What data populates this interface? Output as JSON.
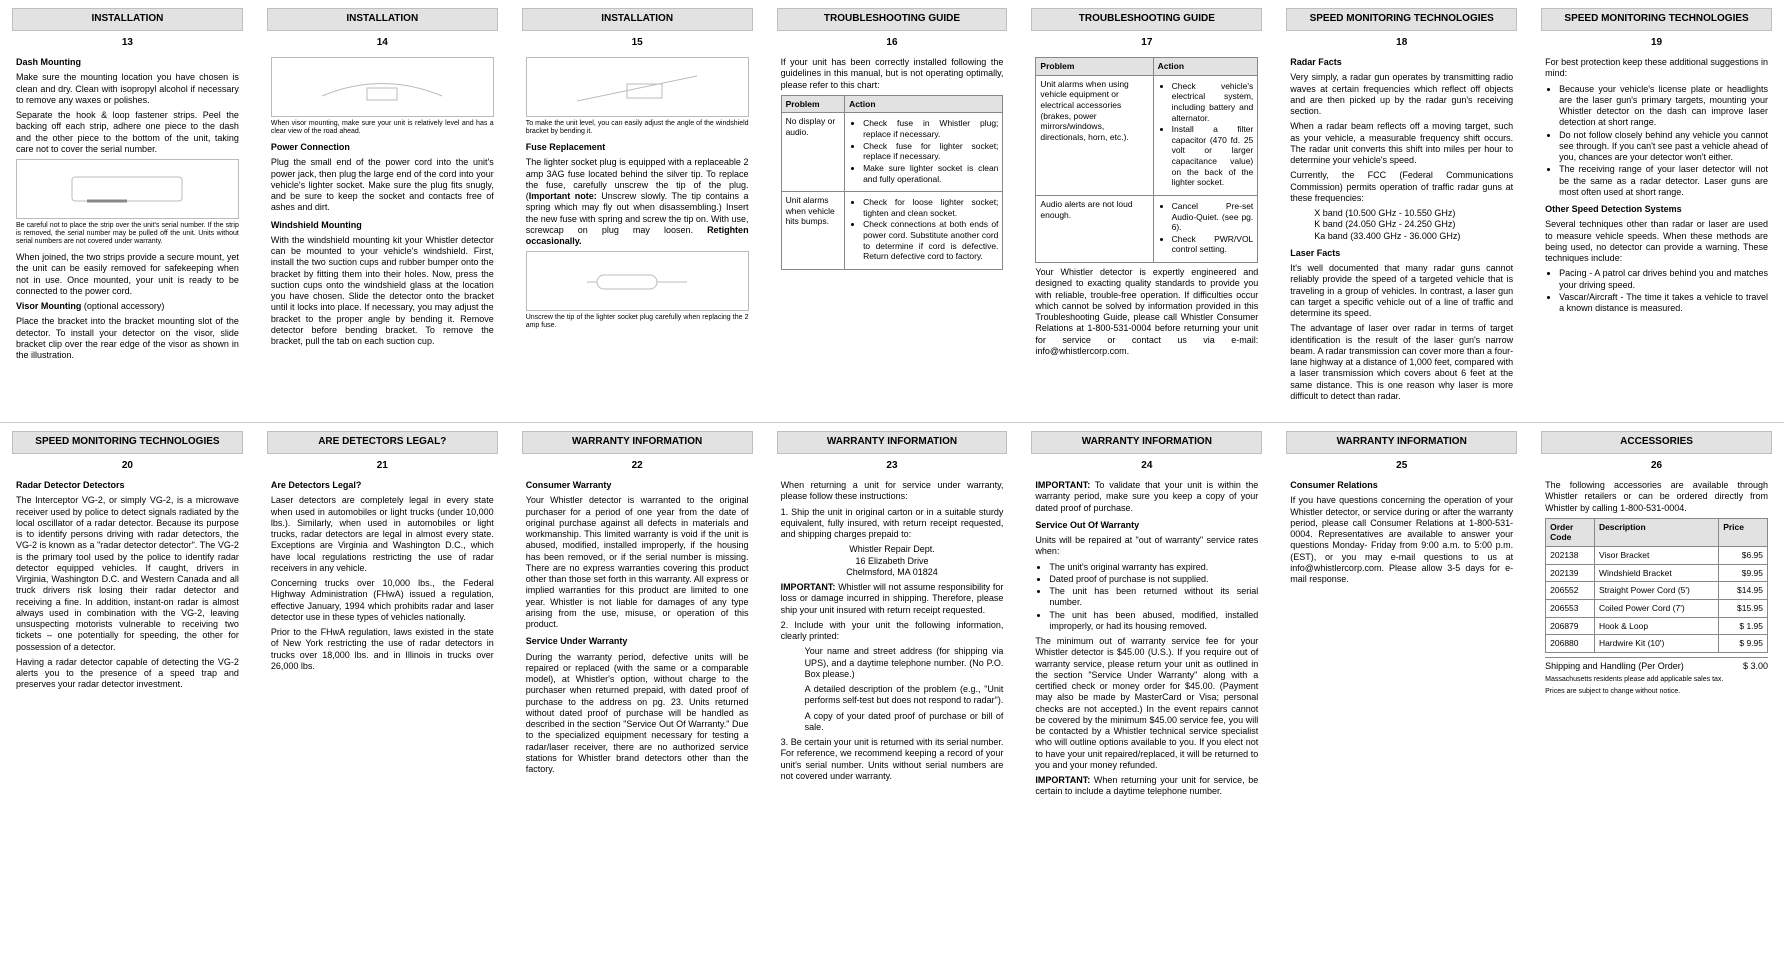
{
  "colors": {
    "header_bg": "#e2e2e2",
    "border": "#bfbfbf"
  },
  "pages": [
    {
      "header": "INSTALLATION",
      "num": "13",
      "h1": "Dash Mounting",
      "p1": "Make sure the mounting location you have chosen is clean and dry. Clean with isopropyl alcohol if necessary to remove any waxes or polishes.",
      "p2": "Separate the hook & loop fastener strips. Peel the backing off each strip, adhere one piece to the dash and the other piece to the bottom of the unit, taking care not to cover the serial number.",
      "cap1": "Be careful not to place the strip over the unit's serial number. If the strip is removed, the serial number may be pulled off the unit. Units without serial numbers are not covered under warranty.",
      "p3": "When joined, the two strips provide a secure mount, yet the unit can be easily removed for safekeeping when not in use. Once mounted, your unit is ready to be connected to the power cord.",
      "h2": "Visor Mounting",
      "h2_suffix": " (optional accessory)",
      "p4": "Place the bracket into the bracket mounting slot of the detector. To install your detector on the visor, slide bracket clip over the rear edge of the visor as shown in the illustration."
    },
    {
      "header": "INSTALLATION",
      "num": "14",
      "cap1": "When visor mounting, make sure your unit is relatively level and has a clear view of the road ahead.",
      "h1": "Power Connection",
      "p1": "Plug the small end of the power cord into the unit's power jack, then plug the large end of the cord into your vehicle's lighter socket. Make sure the plug fits snugly, and be sure to keep the socket and contacts free of ashes and dirt.",
      "h2": "Windshield Mounting",
      "p2": "With the windshield mounting kit your Whistler detector can be mounted to your vehicle's windshield. First, install the two suction cups and rubber bumper onto the bracket by fitting them into their holes. Now, press the suction cups onto the windshield glass at the location you have chosen. Slide the detector onto the bracket until it locks into place. If necessary, you may adjust the bracket to the proper angle by bending it. Remove detector before bending bracket. To remove the bracket, pull the tab on each suction cup."
    },
    {
      "header": "INSTALLATION",
      "num": "15",
      "cap1": "To make the unit level, you can easily adjust the angle of the windshield bracket by bending it.",
      "h1": "Fuse Replacement",
      "p1_a": "The lighter socket plug is equipped with a replaceable 2 amp 3AG fuse located behind the silver tip. To replace the fuse, carefully unscrew the tip of the plug. (",
      "p1_b": "Important note:",
      "p1_c": " Unscrew slowly. The tip contains a spring which may fly out when disassembling.) Insert the new fuse with spring and screw the tip on. With use, screwcap on plug may loosen. ",
      "p1_d": "Retighten occasionally.",
      "cap2": "Unscrew the tip of the lighter socket plug carefully when replacing the 2 amp fuse."
    },
    {
      "header": "TROUBLESHOOTING GUIDE",
      "num": "16",
      "intro": "If your unit has been correctly installed following the guidelines in this manual, but is not operating optimally, please refer to this chart:",
      "th1": "Problem",
      "th2": "Action",
      "r1c1": "No display or audio.",
      "r1c2": [
        "Check fuse in Whistler plug; replace if necessary.",
        "Check fuse for lighter socket; replace if necessary.",
        "Make sure lighter socket is clean and fully operational."
      ],
      "r2c1": "Unit alarms when vehicle hits bumps.",
      "r2c2": [
        "Check for loose lighter socket; tighten and clean socket.",
        "Check connections at both ends of power cord. Substitute another cord to determine if cord is defective. Return defective cord to factory."
      ]
    },
    {
      "header": "TROUBLESHOOTING GUIDE",
      "num": "17",
      "th1": "Problem",
      "th2": "Action",
      "r1c1": "Unit alarms when using vehicle equipment or electrical accessories (brakes, power mirrors/windows, directionals, horn, etc.).",
      "r1c2": [
        "Check vehicle's electrical system, including battery and alternator.",
        "Install a filter capacitor (470 fd. 25 volt or larger capacitance value) on the back of the lighter socket."
      ],
      "r2c1": "Audio alerts are not loud enough.",
      "r2c2": [
        "Cancel Pre-set Audio-Quiet. (see pg. 6).",
        "Check PWR/VOL control setting."
      ],
      "p1": "Your Whistler detector is expertly engineered and designed to exacting quality standards to provide you with reliable, trouble-free operation. If difficulties occur which cannot be solved by information provided in this Troubleshooting Guide, please call Whistler Consumer Relations at 1-800-531-0004 before returning your unit for service or contact us via e-mail: info@whistlercorp.com."
    },
    {
      "header": "SPEED MONITORING TECHNOLOGIES",
      "num": "18",
      "h1": "Radar Facts",
      "p1": "Very simply, a radar gun operates by transmitting radio waves at certain frequencies which reflect off objects and are then picked up by the radar gun's receiving section.",
      "p2": "When a radar beam reflects off a moving target, such as your vehicle, a measurable frequency shift occurs. The radar unit converts this shift into miles per hour to determine your vehicle's speed.",
      "p3": "Currently, the FCC (Federal Communications Commission) permits operation of traffic radar guns at these frequencies:",
      "b1": "X band (10.500 GHz - 10.550 GHz)",
      "b2": "K band (24.050 GHz - 24.250 GHz)",
      "b3": "Ka band (33.400 GHz - 36.000 GHz)",
      "h2": "Laser Facts",
      "p4": "It's well documented that many radar guns cannot reliably provide the speed of a targeted vehicle that is traveling in a group of vehicles. In contrast, a laser gun can target a specific vehicle out of a line of traffic and determine its speed.",
      "p5": "The advantage of laser over radar in terms of target identification is the result of the laser gun's narrow beam. A radar transmission can cover more than a four-lane highway at a distance of 1,000 feet, compared with a laser transmission which covers about 6 feet at the same distance. This is one reason why laser is more difficult to detect than radar."
    },
    {
      "header": "SPEED MONITORING TECHNOLOGIES",
      "num": "19",
      "p1": "For best protection keep these additional suggestions in mind:",
      "l1": [
        "Because your vehicle's license plate or headlights are the laser gun's primary targets, mounting your Whistler detector on the dash can improve laser detection at short range.",
        "Do not follow closely behind any vehicle you cannot see through. If you can't see past a vehicle ahead of you, chances are your detector won't either.",
        "The receiving range of your laser detector will not be the same as a radar detector. Laser guns are most often used at short range."
      ],
      "h1": "Other Speed Detection Systems",
      "p2": "Several techniques other than radar or laser are used to measure vehicle speeds. When these methods are being used, no detector can provide a warning. These techniques include:",
      "l2": [
        "Pacing - A patrol car drives behind you and matches your driving speed.",
        "Vascar/Aircraft - The time it takes a vehicle to travel a known distance is measured."
      ]
    },
    {
      "header": "SPEED MONITORING TECHNOLOGIES",
      "num": "20",
      "h1": "Radar Detector Detectors",
      "p1": "The Interceptor VG-2, or simply VG-2, is a microwave receiver used by police to detect signals radiated by the local oscillator of a radar detector. Because its purpose is to identify persons driving with radar detectors, the VG-2 is known as a \"radar detector detector\". The VG-2 is the primary tool used by the police to identify radar detector equipped vehicles. If caught, drivers in Virginia, Washington D.C. and Western Canada and all truck drivers risk losing their radar detector and receiving a fine. In addition, instant-on radar is almost always used in combination with the VG-2, leaving unsuspecting motorists vulnerable to receiving two tickets – one potentially for speeding, the other for possession of a detector.",
      "p2": "Having a radar detector capable of detecting the VG-2 alerts you to the presence of a speed trap and preserves your radar detector investment."
    },
    {
      "header": "ARE DETECTORS LEGAL?",
      "num": "21",
      "h1": "Are Detectors Legal?",
      "p1": "Laser detectors are completely legal in every state when used in automobiles or light trucks (under 10,000 lbs.). Similarly, when used in automobiles or light trucks, radar detectors are legal in almost every state. Exceptions are Virginia and Washington D.C., which have local regulations restricting the use of radar receivers in any vehicle.",
      "p2": "Concerning trucks over 10,000 lbs., the Federal Highway Administration (FHwA) issued a regulation, effective January, 1994 which prohibits radar and laser detector use in these types of vehicles nationally.",
      "p3": "Prior to the FHwA regulation, laws existed in the state of New York restricting the use of radar detectors in trucks over 18,000 lbs. and in Illinois in trucks over 26,000 lbs."
    },
    {
      "header": "WARRANTY INFORMATION",
      "num": "22",
      "h1": "Consumer Warranty",
      "p1": "Your Whistler detector is warranted to the original purchaser for a period of one year from the date of original purchase against all defects in materials and workmanship. This limited warranty is void if the unit is abused, modified, installed improperly, if the housing has been removed, or if the serial number is missing. There are no express warranties covering this product other than those set forth in this warranty. All express or implied warranties for this product are limited to one year. Whistler is not liable for damages of any type arising from the use, misuse, or operation of this product.",
      "h2": "Service Under Warranty",
      "p2": "During the warranty period, defective units will be repaired or replaced (with the same or a comparable model), at Whistler's option, without charge to the purchaser when returned prepaid, with dated proof of purchase to the address on pg. 23. Units returned without dated proof of purchase will be handled as described in the section \"Service Out Of Warranty.\" Due to the specialized equipment necessary for testing a radar/laser receiver, there are no authorized service stations for Whistler brand detectors other than the factory."
    },
    {
      "header": "WARRANTY INFORMATION",
      "num": "23",
      "p1": "When returning a unit for service under warranty, please follow these instructions:",
      "n1": "1. Ship the unit in original carton or in a suitable sturdy equivalent, fully insured, with return receipt requested, and shipping charges prepaid to:",
      "a1": "Whistler Repair Dept.",
      "a2": "16 Elizabeth Drive",
      "a3": "Chelmsford, MA 01824",
      "imp": "IMPORTANT:",
      "impb": " Whistler will not assume responsibility for loss or damage incurred in shipping. Therefore, please ship your unit insured with return receipt requested.",
      "n2": "2. Include with your unit the following information, clearly printed:",
      "b1": "Your name and street address (for shipping via UPS), and a daytime telephone number. (No P.O. Box please.)",
      "b2": "A detailed description of the problem (e.g., \"Unit performs self-test but does not respond to radar\").",
      "b3": "A copy of your dated proof of purchase or bill of sale.",
      "n3": "3. Be certain your unit is returned with its serial number. For reference, we recommend keeping a record of your unit's serial number. Units without serial numbers are not covered under warranty."
    },
    {
      "header": "WARRANTY INFORMATION",
      "num": "24",
      "imp": "IMPORTANT:",
      "impb": " To validate that your unit is within the warranty period, make sure you keep a copy of your dated proof of purchase.",
      "h1": "Service Out Of Warranty",
      "p1": "Units will be repaired at \"out of warranty\" service rates when:",
      "l1": [
        "The unit's original warranty has expired.",
        "Dated proof of purchase is not supplied.",
        "The unit has been returned without its serial number.",
        "The unit has been abused, modified, installed improperly, or had its housing removed."
      ],
      "p2": "The minimum out of warranty service fee for your Whistler detector is $45.00 (U.S.). If you require out of warranty service, please return your unit as outlined in the section \"Service Under Warranty\" along with a certified check or money order for $45.00. (Payment may also be made by MasterCard or Visa; personal checks are not accepted.) In the event repairs cannot be covered by the minimum $45.00 service fee, you will be contacted by a Whistler technical service specialist who will outline options available to you. If you elect not to have your unit repaired/replaced, it will be returned to you and your money refunded.",
      "imp2": "IMPORTANT:",
      "imp2b": " When returning your unit for service, be certain to include a daytime telephone number."
    },
    {
      "header": "WARRANTY INFORMATION",
      "num": "25",
      "h1": "Consumer Relations",
      "p1": "If you have questions concerning the operation of your Whistler detector, or service during or after the warranty period, please call Consumer Relations at 1-800-531-0004. Representatives are available to answer your questions Monday- Friday from 9:00 a.m. to 5:00 p.m. (EST), or you may e-mail questions to us at info@whistlercorp.com. Please allow 3-5 days for e-mail response."
    },
    {
      "header": "ACCESSORIES",
      "num": "26",
      "p1": "The following accessories are available through Whistler retailers or can be ordered directly from Whistler by calling 1-800-531-0004.",
      "th": [
        "Order Code",
        "Description",
        "Price"
      ],
      "rows": [
        [
          "202138",
          "Visor Bracket",
          "$6.95"
        ],
        [
          "202139",
          "Windshield Bracket",
          "$9.95"
        ],
        [
          "206552",
          "Straight Power Cord (5')",
          "$14.95"
        ],
        [
          "206553",
          "Coiled Power Cord (7')",
          "$15.95"
        ],
        [
          "206879",
          "Hook & Loop",
          "$ 1.95"
        ],
        [
          "206880",
          "Hardwire Kit (10')",
          "$ 9.95"
        ]
      ],
      "ship": "Shipping and Handling (Per Order)",
      "ship_p": "$ 3.00",
      "s1": "Massachusetts residents please add applicable sales tax.",
      "s2": "Prices are subject to change without notice."
    }
  ]
}
